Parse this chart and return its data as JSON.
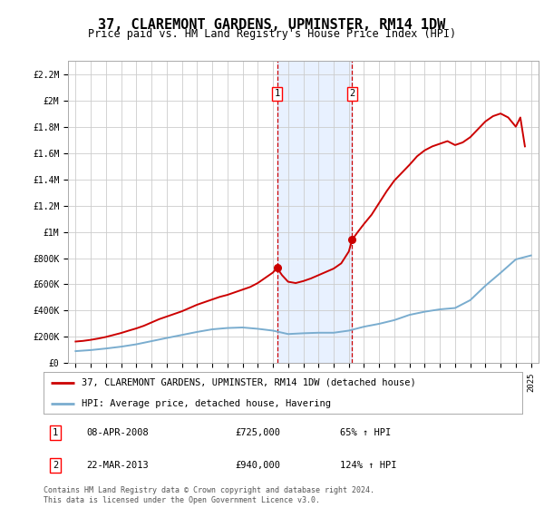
{
  "title": "37, CLAREMONT GARDENS, UPMINSTER, RM14 1DW",
  "subtitle": "Price paid vs. HM Land Registry's House Price Index (HPI)",
  "title_fontsize": 11,
  "subtitle_fontsize": 8.5,
  "bg_color": "#ffffff",
  "grid_color": "#cccccc",
  "annotation1": {
    "label": "1",
    "date_str": "08-APR-2008",
    "price": 725000,
    "hpi_pct": "65% ↑ HPI",
    "x_year": 2008.27
  },
  "annotation2": {
    "label": "2",
    "date_str": "22-MAR-2013",
    "price": 940000,
    "hpi_pct": "124% ↑ HPI",
    "x_year": 2013.22
  },
  "shade_color": "#cce0ff",
  "shade_alpha": 0.45,
  "legend1_label": "37, CLAREMONT GARDENS, UPMINSTER, RM14 1DW (detached house)",
  "legend2_label": "HPI: Average price, detached house, Havering",
  "footer": "Contains HM Land Registry data © Crown copyright and database right 2024.\nThis data is licensed under the Open Government Licence v3.0.",
  "red_line_color": "#cc0000",
  "blue_line_color": "#7aadcf",
  "ylim": [
    0,
    2300000
  ],
  "xlim": [
    1994.5,
    2025.5
  ],
  "yticks": [
    0,
    200000,
    400000,
    600000,
    800000,
    1000000,
    1200000,
    1400000,
    1600000,
    1800000,
    2000000,
    2200000
  ],
  "ytick_labels": [
    "£0",
    "£200K",
    "£400K",
    "£600K",
    "£800K",
    "£1M",
    "£1.2M",
    "£1.4M",
    "£1.6M",
    "£1.8M",
    "£2M",
    "£2.2M"
  ],
  "xticks": [
    1995,
    1996,
    1997,
    1998,
    1999,
    2000,
    2001,
    2002,
    2003,
    2004,
    2005,
    2006,
    2007,
    2008,
    2009,
    2010,
    2011,
    2012,
    2013,
    2014,
    2015,
    2016,
    2017,
    2018,
    2019,
    2020,
    2021,
    2022,
    2023,
    2024,
    2025
  ],
  "red_x": [
    1995,
    1995.5,
    1996,
    1996.5,
    1997,
    1997.5,
    1998,
    1998.5,
    1999,
    1999.5,
    2000,
    2000.5,
    2001,
    2001.5,
    2002,
    2002.5,
    2003,
    2003.5,
    2004,
    2004.5,
    2005,
    2005.5,
    2006,
    2006.5,
    2007,
    2007.5,
    2008.0,
    2008.27,
    2008.6,
    2009,
    2009.5,
    2010,
    2010.5,
    2011,
    2011.5,
    2012,
    2012.5,
    2013.0,
    2013.22,
    2013.6,
    2014,
    2014.5,
    2015,
    2015.5,
    2016,
    2016.5,
    2017,
    2017.5,
    2018,
    2018.5,
    2019,
    2019.5,
    2020,
    2020.5,
    2021,
    2021.5,
    2022,
    2022.5,
    2023,
    2023.5,
    2024,
    2024.3,
    2024.6
  ],
  "red_y": [
    165000,
    170000,
    178000,
    188000,
    200000,
    215000,
    230000,
    248000,
    265000,
    285000,
    310000,
    335000,
    355000,
    375000,
    395000,
    420000,
    445000,
    465000,
    485000,
    505000,
    520000,
    540000,
    560000,
    580000,
    610000,
    650000,
    690000,
    725000,
    670000,
    620000,
    610000,
    625000,
    645000,
    670000,
    695000,
    720000,
    760000,
    850000,
    940000,
    1000000,
    1060000,
    1130000,
    1220000,
    1310000,
    1390000,
    1450000,
    1510000,
    1575000,
    1620000,
    1650000,
    1670000,
    1690000,
    1660000,
    1680000,
    1720000,
    1780000,
    1840000,
    1880000,
    1900000,
    1870000,
    1800000,
    1870000,
    1650000
  ],
  "blue_x": [
    1995,
    1996,
    1997,
    1998,
    1999,
    2000,
    2001,
    2002,
    2003,
    2004,
    2005,
    2006,
    2007,
    2008,
    2009,
    2010,
    2011,
    2012,
    2013,
    2014,
    2015,
    2016,
    2017,
    2018,
    2019,
    2020,
    2021,
    2022,
    2023,
    2024,
    2025
  ],
  "blue_y": [
    92000,
    100000,
    112000,
    126000,
    144000,
    168000,
    192000,
    215000,
    238000,
    258000,
    268000,
    272000,
    262000,
    248000,
    222000,
    228000,
    232000,
    232000,
    248000,
    278000,
    300000,
    328000,
    368000,
    392000,
    410000,
    420000,
    480000,
    590000,
    688000,
    790000,
    820000
  ]
}
